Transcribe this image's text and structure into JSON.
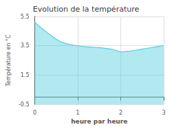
{
  "chart_data": {
    "type": "line",
    "title": "Evolution de la température",
    "xlabel": "heure par heure",
    "ylabel": "Température en °C",
    "x": [
      0,
      0.1,
      0.2,
      0.3,
      0.4,
      0.5,
      0.6,
      0.7,
      0.8,
      0.9,
      1.0,
      1.1,
      1.2,
      1.3,
      1.4,
      1.5,
      1.6,
      1.7,
      1.8,
      1.9,
      2.0,
      2.1,
      2.2,
      2.3,
      2.4,
      2.5,
      2.6,
      2.7,
      2.8,
      2.9,
      3.0
    ],
    "values": [
      5.1,
      4.85,
      4.6,
      4.38,
      4.15,
      3.95,
      3.78,
      3.68,
      3.6,
      3.54,
      3.5,
      3.46,
      3.43,
      3.41,
      3.39,
      3.37,
      3.34,
      3.3,
      3.26,
      3.18,
      3.08,
      3.1,
      3.13,
      3.18,
      3.22,
      3.27,
      3.32,
      3.38,
      3.42,
      3.47,
      3.52
    ],
    "color": "#55ccdd",
    "xlim": [
      0,
      3
    ],
    "xticks": [
      0,
      1,
      2,
      3
    ],
    "ylim": [
      -0.5,
      5.5
    ],
    "yticks": [
      -0.5,
      1.5,
      3.5,
      5.5
    ],
    "grid": true
  }
}
